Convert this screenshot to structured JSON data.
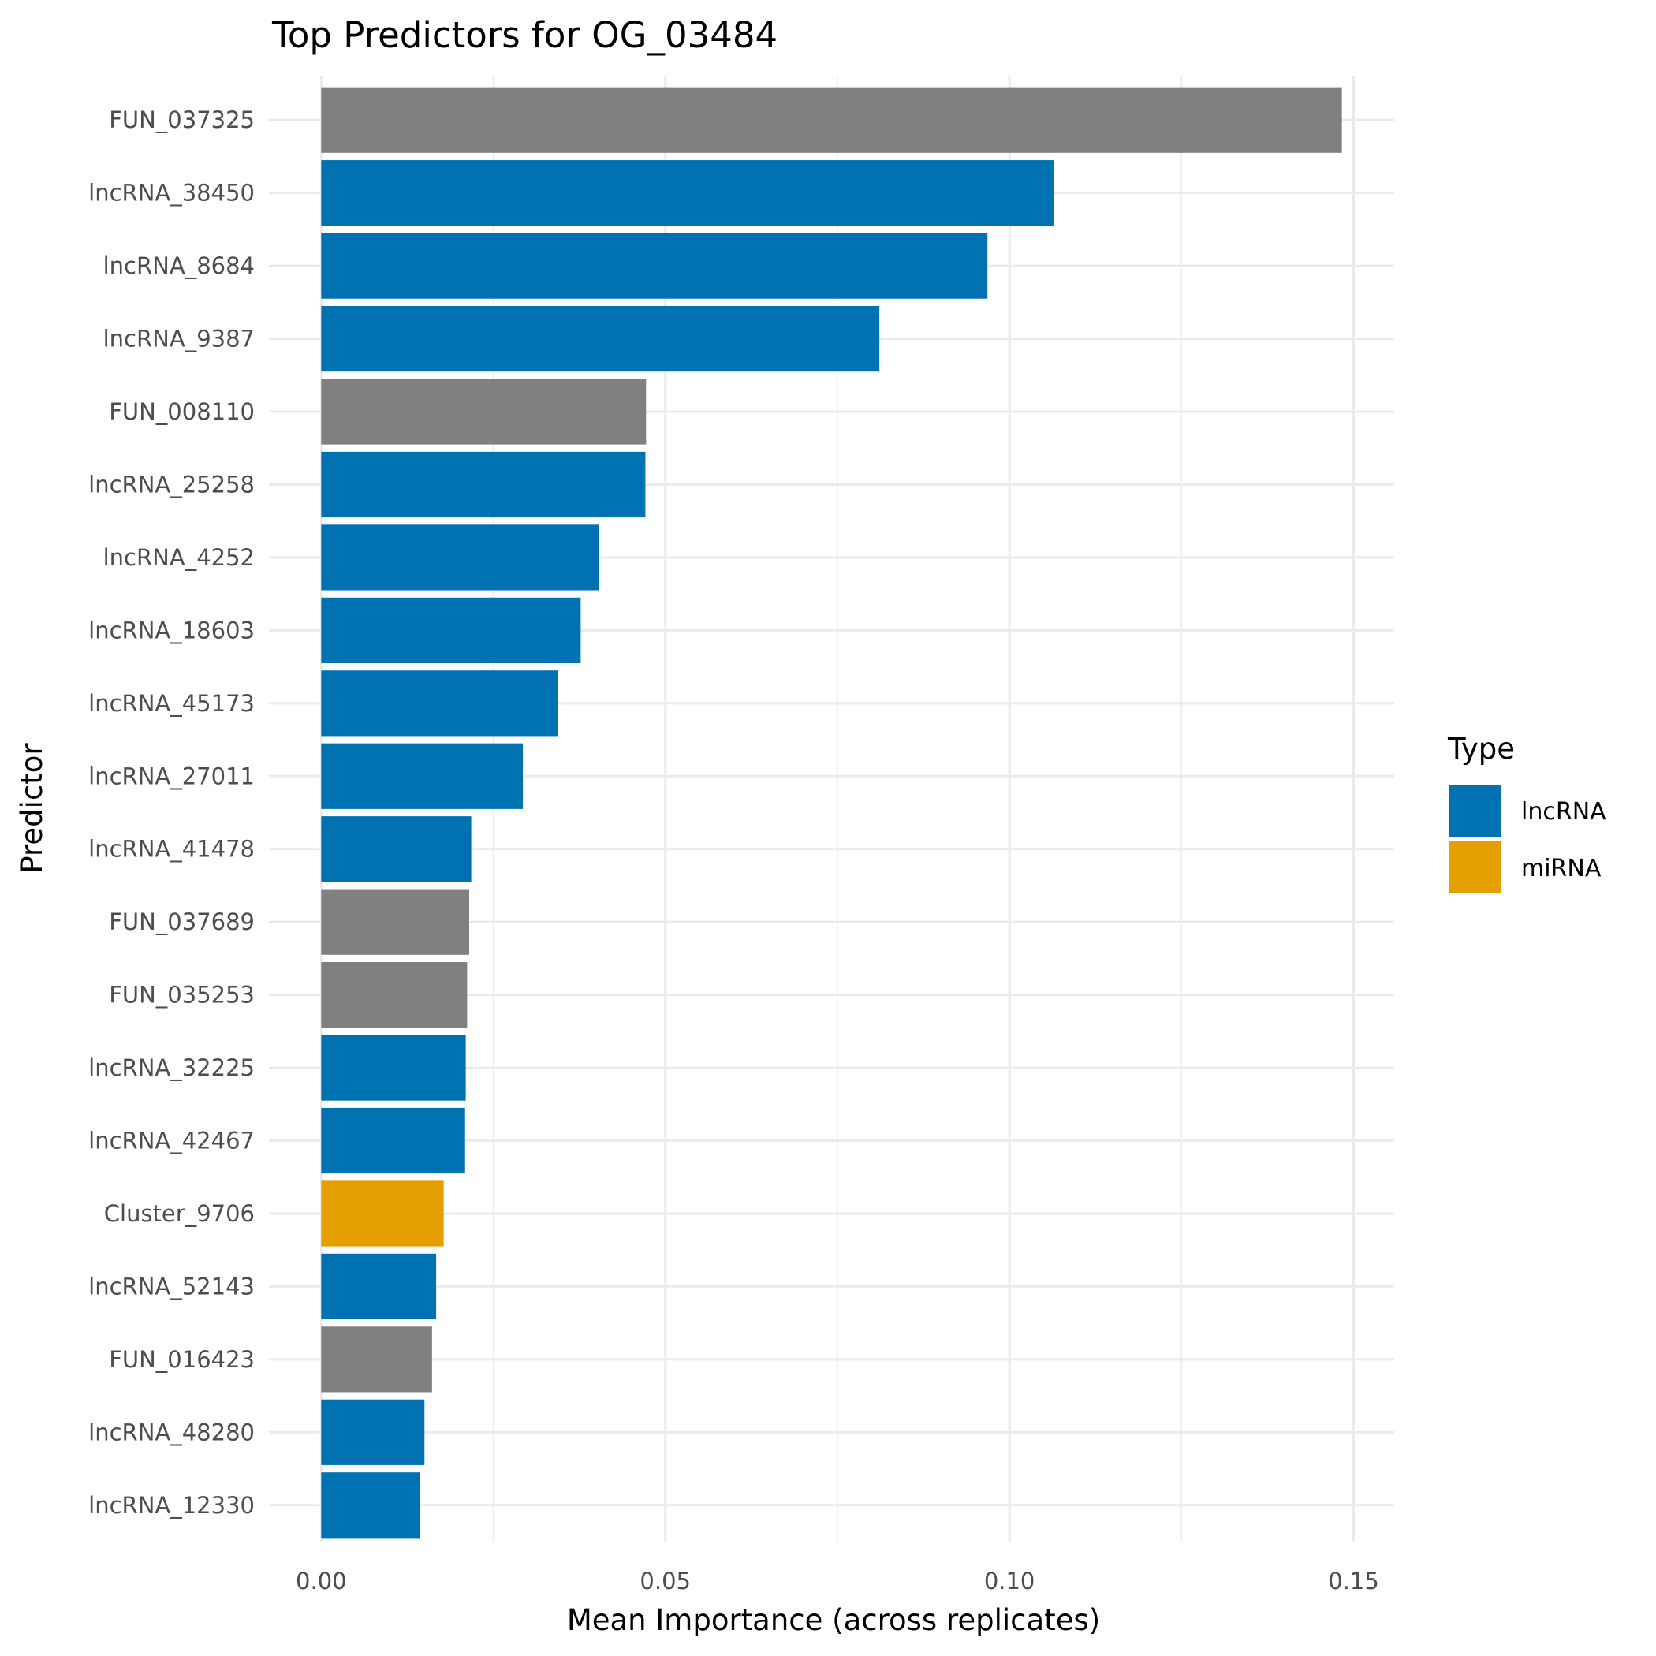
{
  "chart_data": {
    "type": "bar",
    "orientation": "horizontal",
    "title": "Top Predictors for OG_03484",
    "xlabel": "Mean Importance (across replicates)",
    "ylabel": "Predictor",
    "xlim": [
      -0.0076,
      0.1559
    ],
    "xticks": [
      0.0,
      0.05,
      0.1,
      0.15
    ],
    "xtick_labels": [
      "0.00",
      "0.05",
      "0.10",
      "0.15"
    ],
    "grid": true,
    "legend": {
      "title": "Type",
      "placement": "right",
      "entries": [
        {
          "label": "lncRNA",
          "color": "#0072B2"
        },
        {
          "label": "miRNA",
          "color": "#E69F00"
        }
      ]
    },
    "na_color": "#808080",
    "categories": [
      "FUN_037325",
      "lncRNA_38450",
      "lncRNA_8684",
      "lncRNA_9387",
      "FUN_008110",
      "lncRNA_25258",
      "lncRNA_4252",
      "lncRNA_18603",
      "lncRNA_45173",
      "lncRNA_27011",
      "lncRNA_41478",
      "FUN_037689",
      "FUN_035253",
      "lncRNA_32225",
      "lncRNA_42467",
      "Cluster_9706",
      "lncRNA_52143",
      "FUN_016423",
      "lncRNA_48280",
      "lncRNA_12330"
    ],
    "values": [
      0.1483,
      0.1064,
      0.0968,
      0.0811,
      0.0472,
      0.0471,
      0.0403,
      0.0377,
      0.0344,
      0.0293,
      0.0218,
      0.0215,
      0.0212,
      0.021,
      0.0209,
      0.0178,
      0.0167,
      0.0161,
      0.015,
      0.0144
    ],
    "types": [
      "NA",
      "lncRNA",
      "lncRNA",
      "lncRNA",
      "NA",
      "lncRNA",
      "lncRNA",
      "lncRNA",
      "lncRNA",
      "lncRNA",
      "lncRNA",
      "NA",
      "NA",
      "lncRNA",
      "lncRNA",
      "miRNA",
      "lncRNA",
      "NA",
      "lncRNA",
      "lncRNA"
    ]
  }
}
